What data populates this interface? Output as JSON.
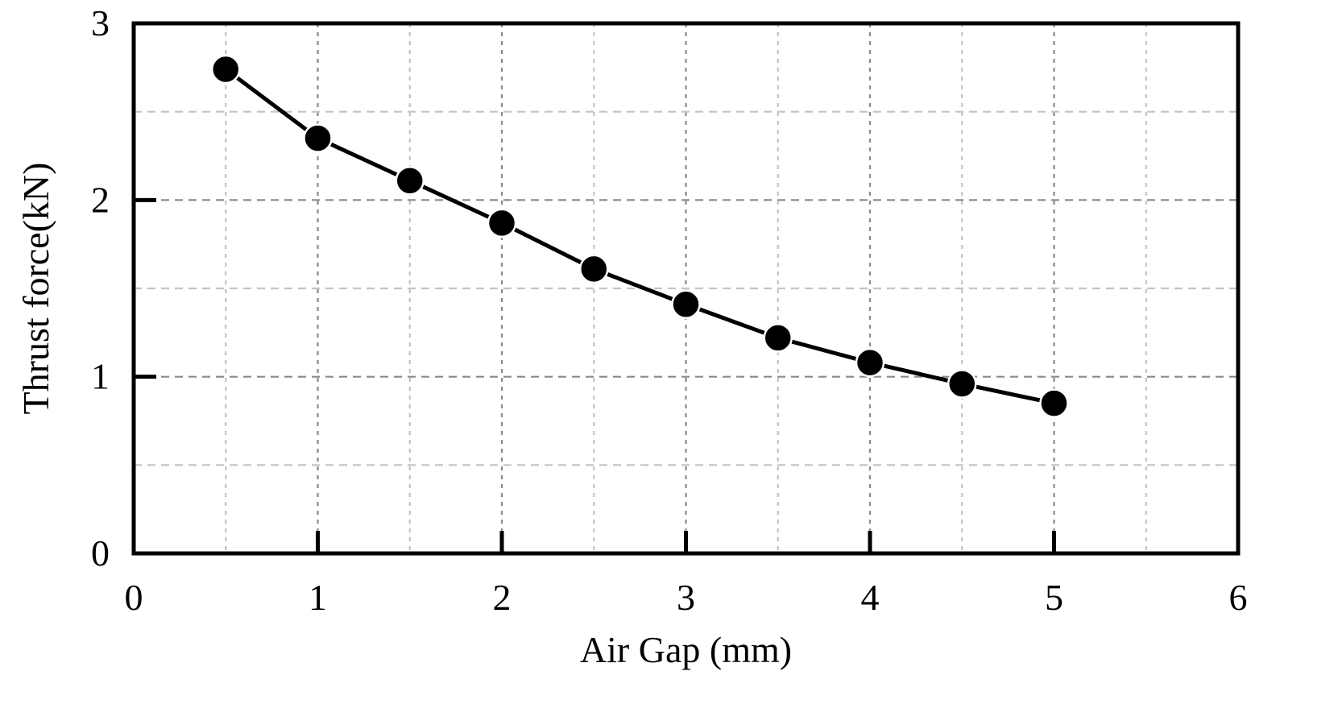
{
  "chart_data": {
    "type": "line",
    "title": "",
    "xlabel": "Air Gap (mm)",
    "ylabel": "Thrust force(kN)",
    "xlim": [
      0,
      6
    ],
    "ylim": [
      0,
      3
    ],
    "xticks": [
      0,
      1,
      2,
      3,
      4,
      5,
      6
    ],
    "yticks": [
      0,
      1,
      2,
      3
    ],
    "x_tick_labels": [
      "0",
      "1",
      "2",
      "3",
      "4",
      "5",
      "6"
    ],
    "y_tick_labels": [
      "0",
      "1",
      "2",
      "3"
    ],
    "grid": true,
    "legend": "none",
    "series": [
      {
        "x": [
          0.5,
          1.0,
          1.5,
          2.0,
          2.5,
          3.0,
          3.5,
          4.0,
          4.5,
          5.0
        ],
        "y": [
          2.74,
          2.35,
          2.11,
          1.87,
          1.61,
          1.41,
          1.22,
          1.08,
          0.96,
          0.85
        ],
        "color": "#000000",
        "marker": "circle"
      }
    ]
  }
}
